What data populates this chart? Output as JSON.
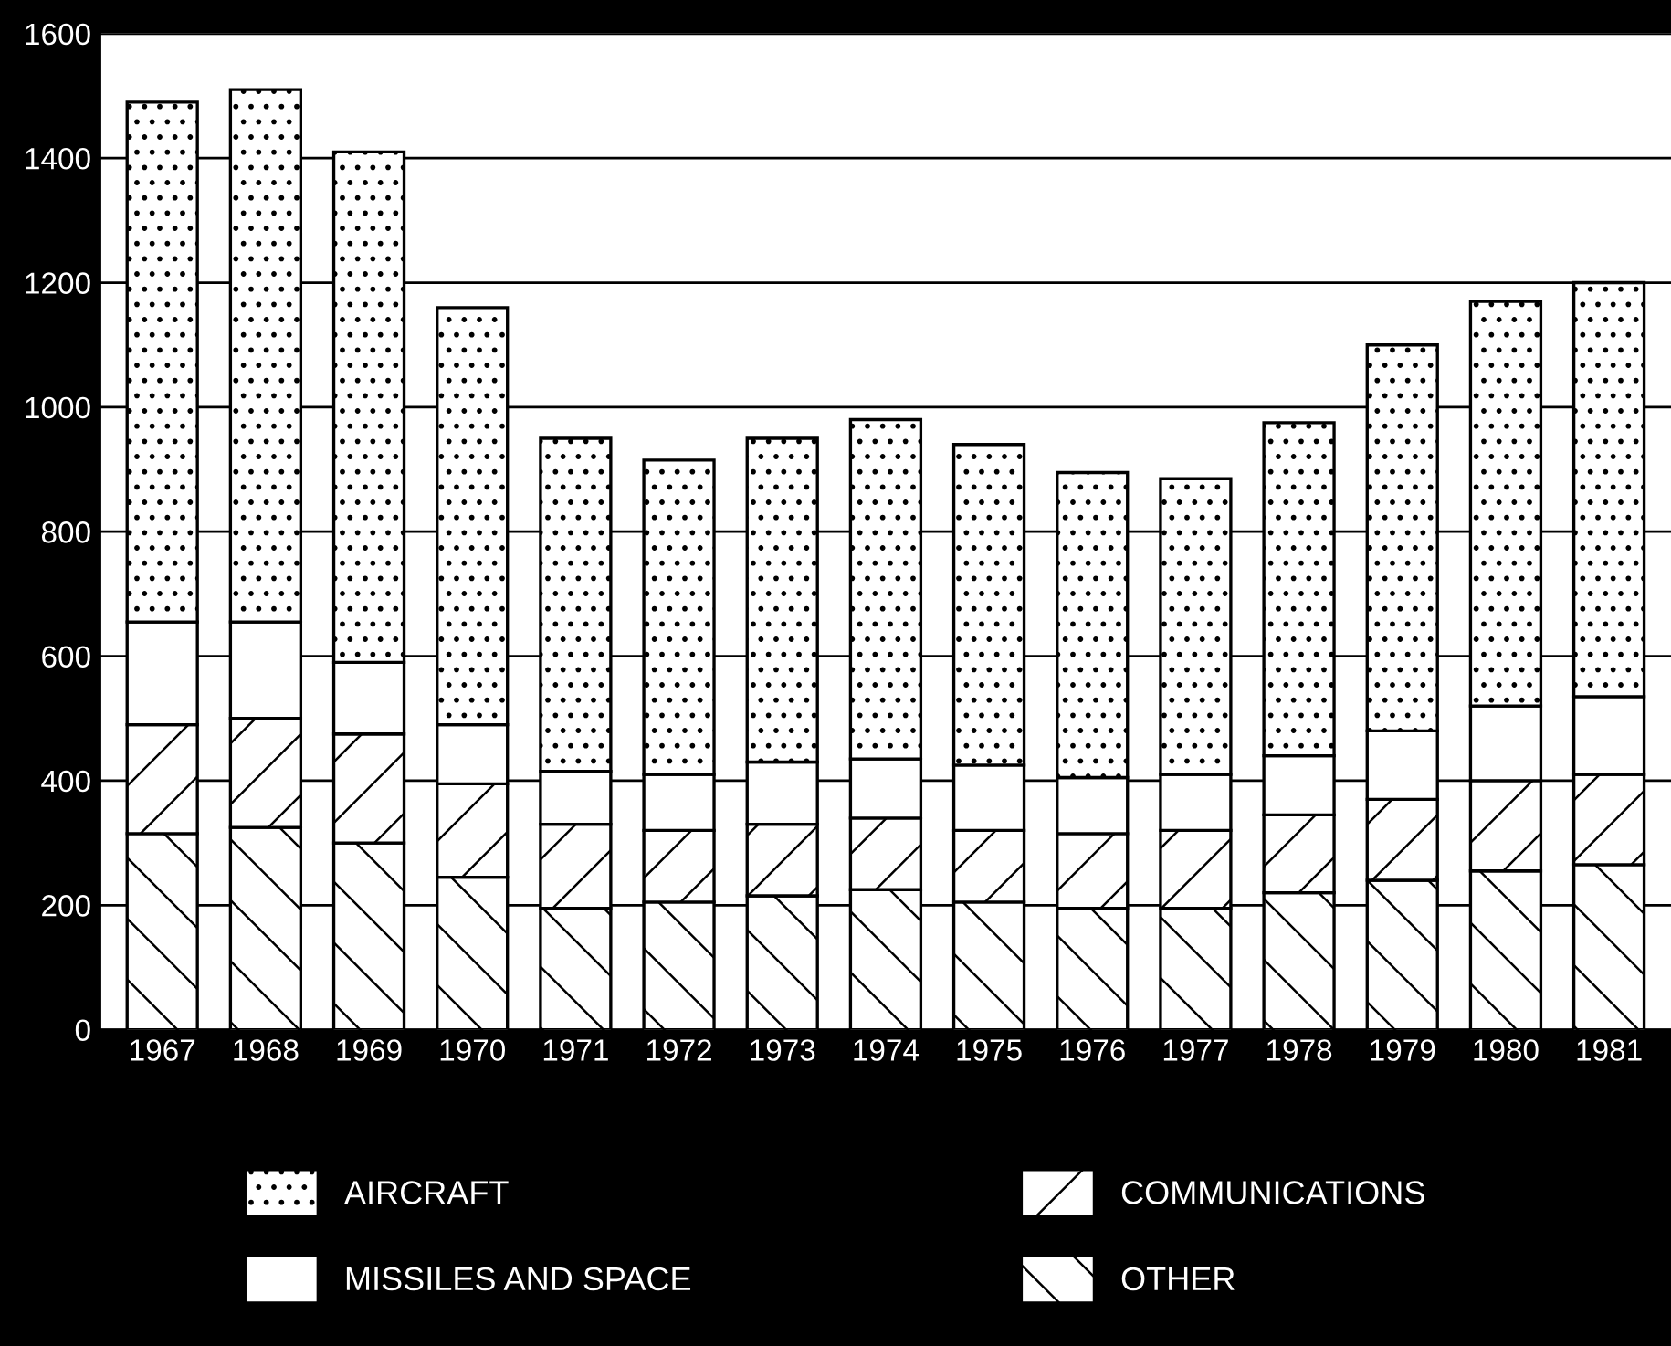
{
  "chart_data": {
    "type": "bar",
    "stacked": true,
    "categories": [
      "1967",
      "1968",
      "1969",
      "1970",
      "1971",
      "1972",
      "1973",
      "1974",
      "1975",
      "1976",
      "1977",
      "1978",
      "1979",
      "1980",
      "1981"
    ],
    "series": [
      {
        "name": "OTHER",
        "color": "#000000",
        "values": [
          315,
          325,
          300,
          245,
          195,
          205,
          215,
          225,
          205,
          195,
          195,
          220,
          240,
          255,
          265
        ]
      },
      {
        "name": "COMMUNICATIONS",
        "color": "#000000",
        "values": [
          175,
          175,
          175,
          150,
          135,
          115,
          115,
          115,
          115,
          120,
          125,
          125,
          130,
          145,
          145
        ]
      },
      {
        "name": "MISSILES AND SPACE",
        "color": "#ffffff",
        "values": [
          165,
          155,
          115,
          95,
          85,
          90,
          100,
          95,
          105,
          90,
          90,
          95,
          110,
          120,
          125
        ]
      },
      {
        "name": "AIRCRAFT",
        "color": "#000000",
        "values": [
          835,
          855,
          820,
          670,
          535,
          505,
          520,
          545,
          515,
          490,
          475,
          535,
          620,
          650,
          665
        ]
      }
    ],
    "ylim": [
      0,
      1600
    ],
    "yticks": [
      0,
      200,
      400,
      600,
      800,
      1000,
      1200,
      1400,
      1600
    ],
    "grid": "y",
    "legend": "bottom"
  }
}
